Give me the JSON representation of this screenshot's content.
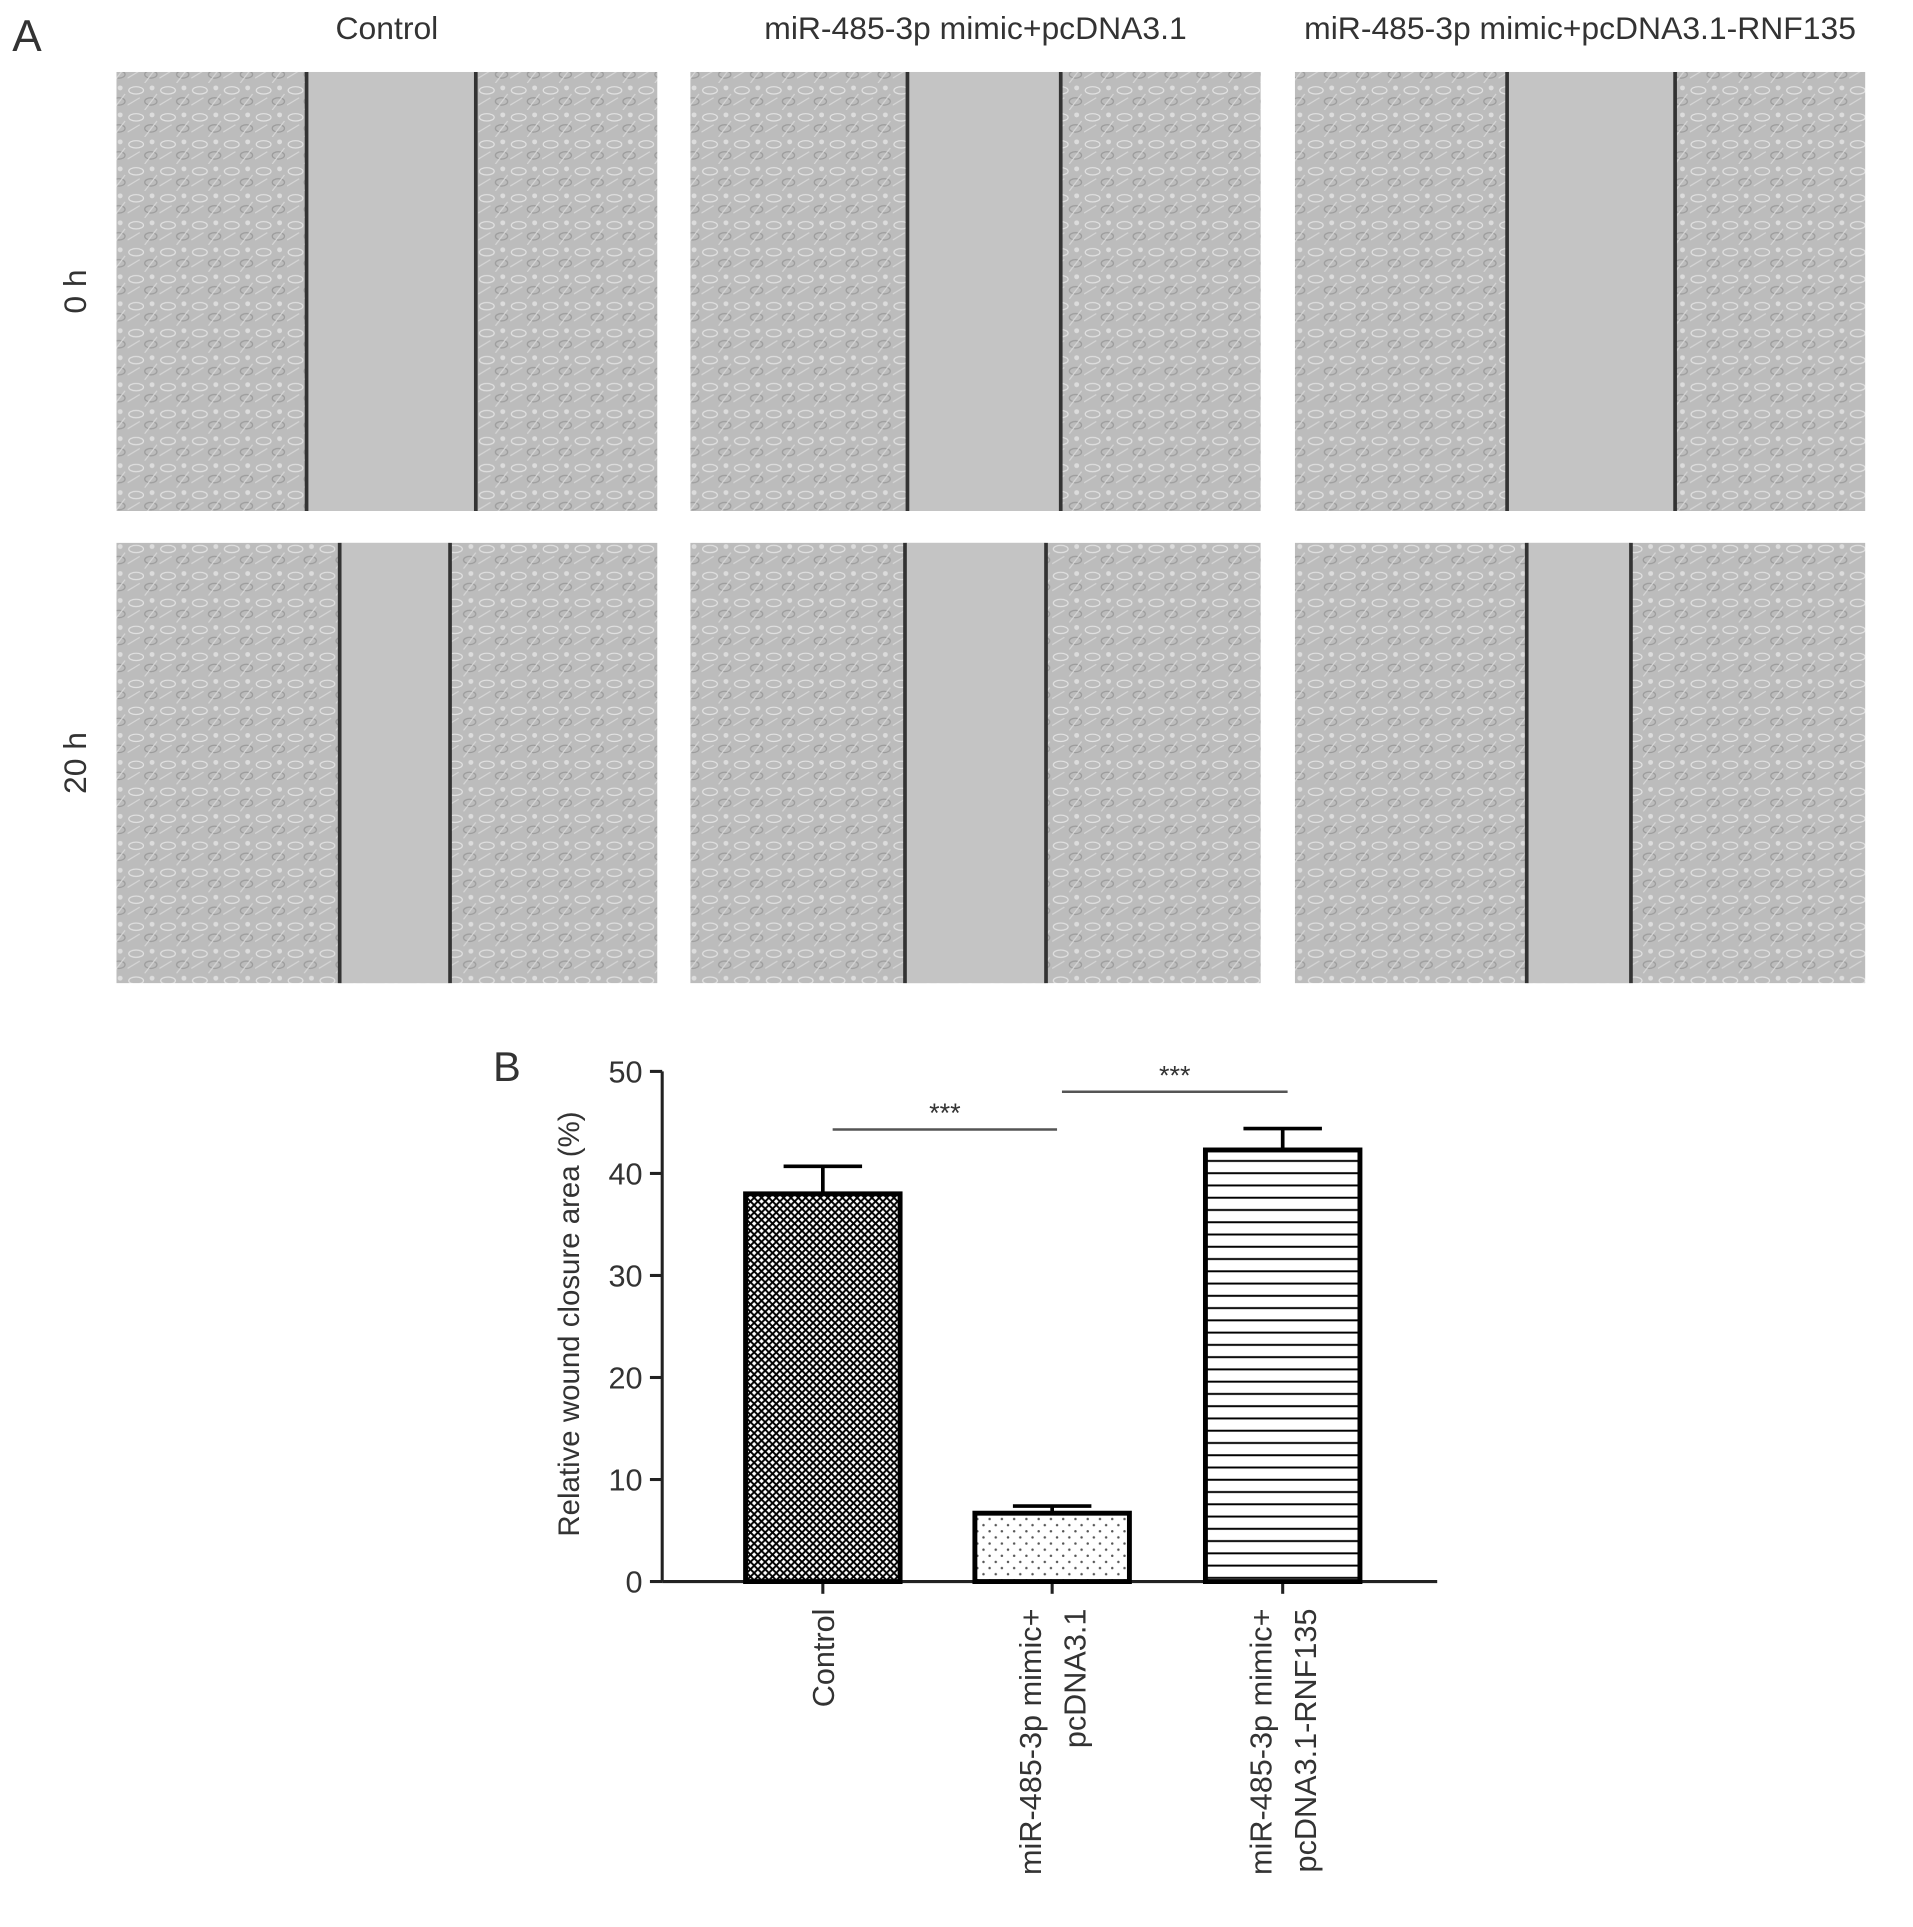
{
  "panel_a": {
    "label": "A",
    "columns": [
      "Control",
      "miR-485-3p mimic+pcDNA3.1",
      "miR-485-3p mimic+pcDNA3.1-RNF135"
    ],
    "rows": [
      "0 h",
      "20 h"
    ]
  },
  "chart_data": {
    "type": "bar",
    "panel_label": "B",
    "ylabel": "Relative wound closure area (%)",
    "categories": [
      [
        "Control"
      ],
      [
        "miR-485-3p mimic+",
        "pcDNA3.1"
      ],
      [
        "miR-485-3p mimic+",
        "pcDNA3.1-RNF135"
      ]
    ],
    "values": [
      38,
      6.7,
      42.3
    ],
    "errors": [
      2.7,
      0.7,
      2.1
    ],
    "patterns": [
      "crosshatch",
      "dots",
      "hlines"
    ],
    "color": "#000000",
    "ylim": [
      0,
      50
    ],
    "yticks": [
      0,
      10,
      20,
      30,
      40,
      50
    ],
    "annotations": [
      {
        "text": "***",
        "between": [
          0,
          1
        ]
      },
      {
        "text": "***",
        "between": [
          1,
          2
        ]
      }
    ]
  }
}
